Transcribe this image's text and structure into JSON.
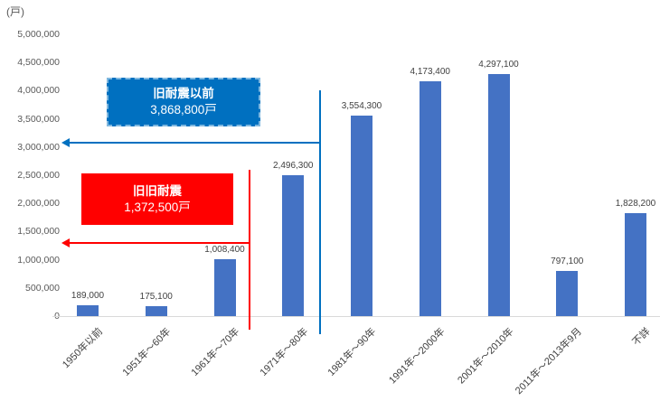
{
  "chart_data": {
    "type": "bar",
    "title": "",
    "unit_label": "(戸)",
    "categories": [
      "1950年以前",
      "1951年～60年",
      "1961年～70年",
      "1971年～80年",
      "1981年～90年",
      "1991年～2000年",
      "2001年～2010年",
      "2011年～2013年9月",
      "不詳"
    ],
    "values": [
      189000,
      175100,
      1008400,
      2496300,
      3554300,
      4173400,
      4297100,
      797100,
      1828200
    ],
    "data_labels": [
      "189,000",
      "175,100",
      "1,008,400",
      "2,496,300",
      "3,554,300",
      "4,173,400",
      "4,297,100",
      "797,100",
      "1,828,200"
    ],
    "xlabel": "",
    "ylabel": "(戸)",
    "ylim": [
      0,
      5000000
    ],
    "ytick_interval": 500000,
    "yticks": [
      "5,000,000",
      "4,500,000",
      "4,000,000",
      "3,500,000",
      "3,000,000",
      "2,500,000",
      "2,000,000",
      "1,500,000",
      "1,000,000",
      "500,000",
      "0"
    ],
    "grid": false,
    "legend": "none",
    "bar_color": "#4472C4",
    "axis_color": "#D9D9D9",
    "label_color": "#404040"
  },
  "annotations": {
    "old_seismic": {
      "title": "旧耐震以前",
      "value": "3,868,800戸",
      "color": "#0070C0"
    },
    "old_old_seismic": {
      "title": "旧旧耐震",
      "value": "1,372,500戸",
      "color": "#FF0000"
    }
  }
}
